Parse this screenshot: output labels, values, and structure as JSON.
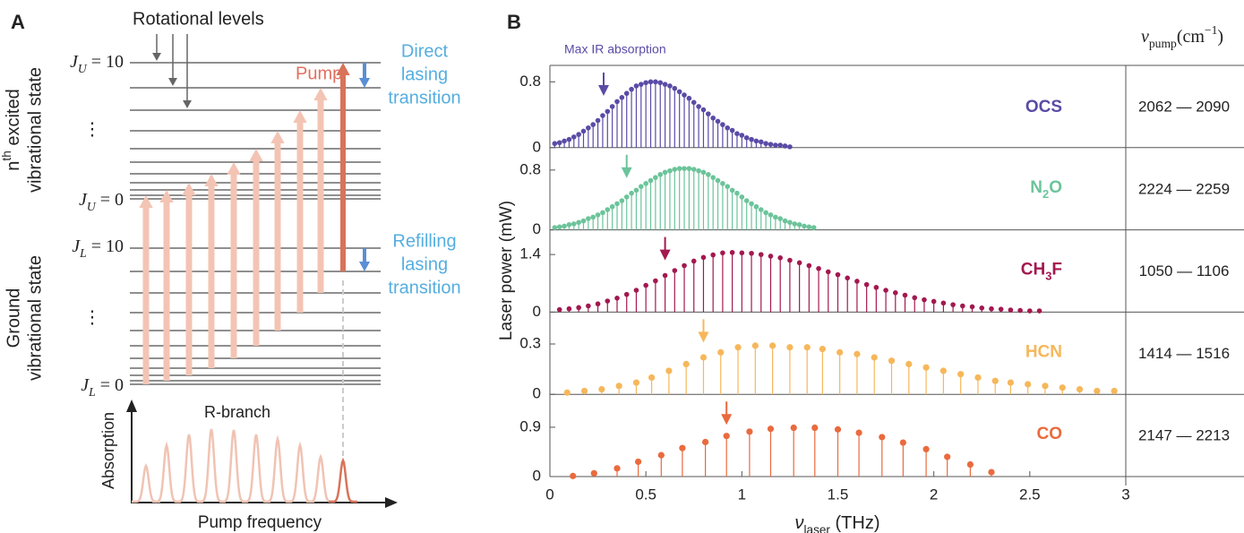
{
  "panel_a": {
    "label": "A",
    "rotational_levels": "Rotational levels",
    "upper_state_label": {
      "line1": [
        {
          "text": "n"
        },
        {
          "text": "th",
          "sup": true
        },
        {
          "text": " excited"
        }
      ],
      "line2": "vibrational state"
    },
    "ground_state_label": [
      "Ground",
      "vibrational state"
    ],
    "level_labels": [
      [
        {
          "text": "J",
          "italic": true
        },
        {
          "text": "U",
          "sub": true,
          "italic": true
        },
        {
          "text": " = 10"
        }
      ],
      [
        {
          "text": "J",
          "italic": true
        },
        {
          "text": "U",
          "sub": true,
          "italic": true
        },
        {
          "text": " = 0"
        }
      ],
      [
        {
          "text": "J",
          "italic": true
        },
        {
          "text": "L",
          "sub": true,
          "italic": true
        },
        {
          "text": " = 10"
        }
      ],
      [
        {
          "text": "J",
          "italic": true
        },
        {
          "text": "L",
          "sub": true,
          "italic": true
        },
        {
          "text": " = 0"
        }
      ]
    ],
    "ellipsis": [
      "⋮",
      "⋮"
    ],
    "pump": "Pump",
    "direct_lasing": [
      "Direct",
      "lasing",
      "transition"
    ],
    "refilling_lasing": [
      "Refilling",
      "lasing",
      "transition"
    ],
    "r_branch": "R-branch",
    "absorption_axis": "Absorption",
    "pump_frequency_axis": "Pump frequency"
  },
  "panel_b": {
    "label": "B",
    "ylabel": "Laser power (mW)",
    "xlabel": [
      {
        "text": "ν",
        "italic": true
      },
      {
        "text": "laser",
        "sub": true
      },
      {
        "text": " (THz)"
      }
    ],
    "pump_header": [
      {
        "text": "ν",
        "italic": true
      },
      {
        "text": "pump",
        "sub": true
      },
      {
        "text": "(cm"
      },
      {
        "text": "−1",
        "sup": true
      },
      {
        "text": ")"
      }
    ]
  },
  "chart_data": [
    {
      "type": "stem",
      "name": [
        {
          "text": "OCS"
        }
      ],
      "color": "#5a4ba6",
      "annotation": "Max IR absorption",
      "x": [
        0.025,
        0.05,
        0.075,
        0.1,
        0.125,
        0.15,
        0.175,
        0.2,
        0.225,
        0.25,
        0.275,
        0.3,
        0.325,
        0.35,
        0.375,
        0.4,
        0.425,
        0.45,
        0.475,
        0.5,
        0.525,
        0.55,
        0.575,
        0.6,
        0.625,
        0.65,
        0.675,
        0.7,
        0.725,
        0.75,
        0.775,
        0.8,
        0.825,
        0.85,
        0.875,
        0.9,
        0.925,
        0.95,
        0.975,
        1,
        1.025,
        1.05,
        1.075,
        1.1,
        1.125,
        1.15,
        1.175,
        1.2,
        1.225,
        1.25
      ],
      "values": [
        0.05,
        0.06,
        0.08,
        0.1,
        0.13,
        0.16,
        0.2,
        0.24,
        0.28,
        0.33,
        0.39,
        0.44,
        0.5,
        0.56,
        0.61,
        0.66,
        0.71,
        0.75,
        0.77,
        0.79,
        0.8,
        0.8,
        0.79,
        0.77,
        0.75,
        0.72,
        0.68,
        0.64,
        0.6,
        0.55,
        0.5,
        0.46,
        0.41,
        0.36,
        0.32,
        0.28,
        0.24,
        0.21,
        0.17,
        0.15,
        0.12,
        0.1,
        0.08,
        0.07,
        0.05,
        0.04,
        0.03,
        0.03,
        0.02,
        0.01
      ],
      "xlim": [
        0,
        3
      ],
      "ylim": [
        0,
        1
      ],
      "yticks": [
        0,
        0.8
      ],
      "max_ir_absorption_x": 0.28,
      "pump_range": "2062 — 2090"
    },
    {
      "type": "stem",
      "name": [
        {
          "text": "N"
        },
        {
          "text": "2",
          "sub": true
        },
        {
          "text": "O"
        }
      ],
      "color": "#6bc49a",
      "x": [
        0.025,
        0.05,
        0.075,
        0.1,
        0.125,
        0.15,
        0.175,
        0.2,
        0.225,
        0.25,
        0.275,
        0.3,
        0.325,
        0.35,
        0.375,
        0.4,
        0.425,
        0.45,
        0.475,
        0.5,
        0.525,
        0.55,
        0.575,
        0.6,
        0.625,
        0.65,
        0.675,
        0.7,
        0.725,
        0.75,
        0.775,
        0.8,
        0.825,
        0.85,
        0.875,
        0.9,
        0.925,
        0.95,
        0.975,
        1,
        1.025,
        1.05,
        1.075,
        1.1,
        1.125,
        1.15,
        1.175,
        1.2,
        1.225,
        1.25,
        1.275,
        1.3,
        1.325,
        1.35,
        1.375
      ],
      "values": [
        0.03,
        0.04,
        0.05,
        0.07,
        0.08,
        0.1,
        0.12,
        0.15,
        0.17,
        0.2,
        0.23,
        0.27,
        0.31,
        0.35,
        0.39,
        0.44,
        0.49,
        0.53,
        0.58,
        0.62,
        0.66,
        0.7,
        0.74,
        0.77,
        0.79,
        0.81,
        0.82,
        0.82,
        0.82,
        0.81,
        0.79,
        0.77,
        0.74,
        0.7,
        0.66,
        0.62,
        0.58,
        0.53,
        0.49,
        0.44,
        0.39,
        0.35,
        0.31,
        0.27,
        0.23,
        0.2,
        0.17,
        0.15,
        0.12,
        0.1,
        0.08,
        0.07,
        0.05,
        0.04,
        0.03
      ],
      "xlim": [
        0,
        3
      ],
      "ylim": [
        0,
        1.1
      ],
      "yticks": [
        0,
        0.8
      ],
      "max_ir_absorption_x": 0.4,
      "pump_range": "2224 — 2259"
    },
    {
      "type": "stem",
      "name": [
        {
          "text": "CH"
        },
        {
          "text": "3",
          "sub": true
        },
        {
          "text": "F"
        }
      ],
      "color": "#a3184f",
      "x": [
        0.05,
        0.1,
        0.15,
        0.2,
        0.25,
        0.3,
        0.35,
        0.4,
        0.45,
        0.5,
        0.55,
        0.6,
        0.65,
        0.7,
        0.75,
        0.8,
        0.85,
        0.9,
        0.95,
        1,
        1.05,
        1.1,
        1.15,
        1.2,
        1.25,
        1.3,
        1.35,
        1.4,
        1.45,
        1.5,
        1.55,
        1.6,
        1.65,
        1.7,
        1.75,
        1.8,
        1.85,
        1.9,
        1.95,
        2,
        2.05,
        2.1,
        2.15,
        2.2,
        2.25,
        2.3,
        2.35,
        2.4,
        2.45,
        2.5,
        2.55
      ],
      "values": [
        0.06,
        0.08,
        0.11,
        0.15,
        0.2,
        0.27,
        0.34,
        0.43,
        0.53,
        0.65,
        0.76,
        0.89,
        1.01,
        1.13,
        1.24,
        1.33,
        1.39,
        1.44,
        1.45,
        1.44,
        1.43,
        1.4,
        1.36,
        1.32,
        1.26,
        1.2,
        1.13,
        1.06,
        0.98,
        0.91,
        0.83,
        0.75,
        0.67,
        0.6,
        0.53,
        0.47,
        0.41,
        0.35,
        0.3,
        0.26,
        0.22,
        0.18,
        0.15,
        0.13,
        0.1,
        0.08,
        0.07,
        0.05,
        0.04,
        0.03,
        0.03
      ],
      "xlim": [
        0,
        3
      ],
      "ylim": [
        0,
        2
      ],
      "yticks": [
        0,
        1.4
      ],
      "max_ir_absorption_x": 0.6,
      "pump_range": "1050 — 1106"
    },
    {
      "type": "stem",
      "name": [
        {
          "text": "HCN"
        }
      ],
      "color": "#f6b75a",
      "x": [
        0.09,
        0.18,
        0.27,
        0.36,
        0.45,
        0.53,
        0.62,
        0.71,
        0.8,
        0.89,
        0.98,
        1.07,
        1.16,
        1.25,
        1.34,
        1.42,
        1.51,
        1.6,
        1.69,
        1.78,
        1.87,
        1.96,
        2.05,
        2.14,
        2.23,
        2.32,
        2.4,
        2.49,
        2.58,
        2.67,
        2.76,
        2.85,
        2.94
      ],
      "values": [
        0.01,
        0.02,
        0.03,
        0.05,
        0.07,
        0.1,
        0.14,
        0.18,
        0.22,
        0.25,
        0.28,
        0.29,
        0.29,
        0.28,
        0.28,
        0.27,
        0.25,
        0.24,
        0.22,
        0.2,
        0.18,
        0.16,
        0.14,
        0.12,
        0.1,
        0.08,
        0.07,
        0.06,
        0.05,
        0.04,
        0.03,
        0.02,
        0.02
      ],
      "xlim": [
        0,
        3
      ],
      "ylim": [
        0,
        0.49
      ],
      "yticks": [
        0,
        0.3
      ],
      "max_ir_absorption_x": 0.8,
      "pump_range": "1414 — 1516"
    },
    {
      "type": "stem",
      "name": [
        {
          "text": "CO"
        }
      ],
      "color": "#ea6a3d",
      "x": [
        0.12,
        0.23,
        0.35,
        0.46,
        0.58,
        0.69,
        0.81,
        0.92,
        1.04,
        1.15,
        1.27,
        1.38,
        1.5,
        1.61,
        1.73,
        1.84,
        1.96,
        2.07,
        2.19,
        2.3
      ],
      "values": [
        0.01,
        0.06,
        0.15,
        0.27,
        0.39,
        0.52,
        0.63,
        0.74,
        0.82,
        0.87,
        0.89,
        0.89,
        0.86,
        0.8,
        0.72,
        0.62,
        0.5,
        0.36,
        0.22,
        0.08
      ],
      "xlim": [
        0,
        3
      ],
      "ylim": [
        0,
        1.5
      ],
      "yticks": [
        0,
        0.9
      ],
      "xticks": [
        0,
        0.5,
        1,
        1.5,
        2,
        2.5,
        3
      ],
      "max_ir_absorption_x": 0.92,
      "pump_range": "2147 — 2213"
    }
  ]
}
